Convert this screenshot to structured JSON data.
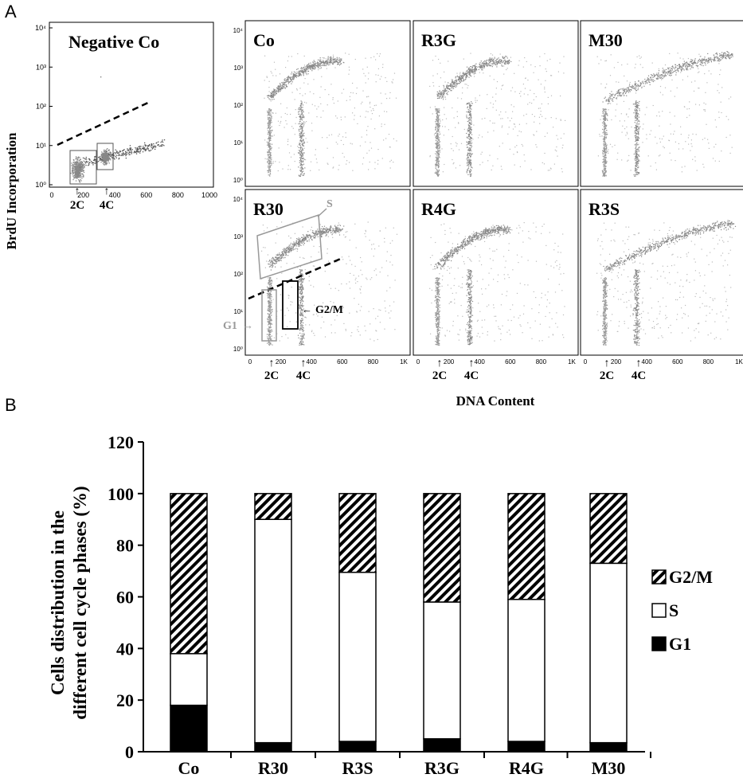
{
  "panel_a": {
    "label": "A",
    "y_axis_label": "BrdU Incorporation",
    "x_axis_label": "DNA Content",
    "neg_panel": {
      "title": "Negative Co",
      "y_ticks": [
        "10⁰",
        "10¹",
        "10²",
        "10³",
        "10⁴"
      ],
      "x_ticks": [
        "0",
        "200",
        "400",
        "600",
        "800",
        "1000"
      ],
      "markers": [
        "2C",
        "4C"
      ]
    },
    "grid_x_ticks": [
      "0",
      "200",
      "400",
      "600",
      "800",
      "1K"
    ],
    "grid_y_ticks": [
      "10⁰",
      "10¹",
      "10²",
      "10³",
      "10⁴"
    ],
    "panels": [
      {
        "title": "Co"
      },
      {
        "title": "R3G"
      },
      {
        "title": "M30"
      },
      {
        "title": "R30"
      },
      {
        "title": "R4G"
      },
      {
        "title": "R3S"
      }
    ],
    "gate_labels": {
      "s": "S",
      "g1": "G1",
      "g2m": "G2/M"
    },
    "markers": [
      "2C",
      "4C"
    ]
  },
  "panel_b": {
    "label": "B",
    "chart_data": {
      "type": "bar",
      "stacked": true,
      "categories": [
        "Co",
        "R30",
        "R3S",
        "R3G",
        "R4G",
        "M30"
      ],
      "series": [
        {
          "name": "G1",
          "values": [
            18,
            3.5,
            4,
            5,
            4,
            3.5
          ],
          "fill": "#000000"
        },
        {
          "name": "S",
          "values": [
            20,
            86.5,
            65.5,
            53,
            55,
            69.5
          ],
          "fill": "#ffffff"
        },
        {
          "name": "G2/M",
          "values": [
            62,
            10,
            30.5,
            42,
            41,
            27
          ],
          "fill": "hatched"
        }
      ],
      "ylabel_line1": "Cells distribution in the",
      "ylabel_line2": "different cell cycle phases (%)",
      "ylim": [
        0,
        120
      ],
      "y_ticks": [
        "0",
        "20",
        "40",
        "60",
        "80",
        "100",
        "120"
      ],
      "legend_placement": "right"
    }
  }
}
